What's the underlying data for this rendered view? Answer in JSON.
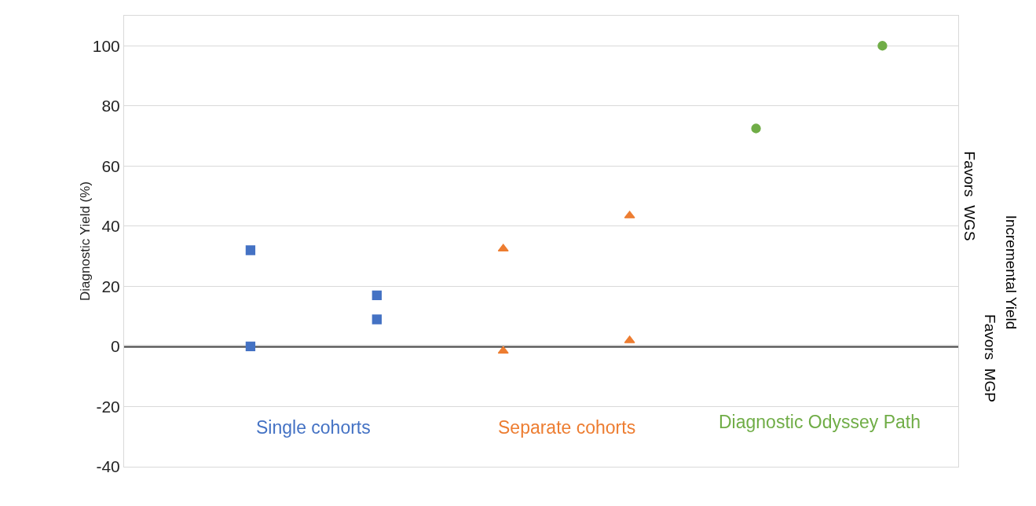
{
  "chart_data": {
    "type": "scatter",
    "ylabel": "Diagnostic Yield (%)",
    "categories": [
      null,
      null,
      null,
      null,
      null,
      null
    ],
    "series": [
      {
        "color": "#4472c4",
        "marker": "square",
        "values": [
          32,
          17,
          null,
          null,
          null,
          null
        ]
      },
      {
        "color": "#4472c4",
        "marker": "square",
        "values": [
          0,
          9,
          null,
          null,
          null,
          null
        ]
      },
      {
        "color": "#ed7d31",
        "marker": "triangle",
        "values": [
          null,
          null,
          32.5,
          43.5,
          null,
          null
        ]
      },
      {
        "color": "#ed7d31",
        "marker": "triangle",
        "values": [
          null,
          null,
          -1.5,
          2,
          null,
          null
        ]
      },
      {
        "color": "#70ad47",
        "marker": "circle",
        "values": [
          null,
          null,
          null,
          null,
          72.5,
          100
        ]
      }
    ],
    "ylim": [
      -40,
      110
    ],
    "yticks": [
      -40,
      -20,
      0,
      20,
      40,
      60,
      80,
      100
    ],
    "grid": "y",
    "ref_lines": [
      {
        "axis": "y",
        "value": 0,
        "color": "#000000"
      }
    ],
    "annotations": [
      "Single cohorts",
      "Separate cohorts",
      "Diagnostic Odyssey Path",
      "Favors  WGS",
      "Favors  MGP",
      "Incremental Yield"
    ]
  }
}
